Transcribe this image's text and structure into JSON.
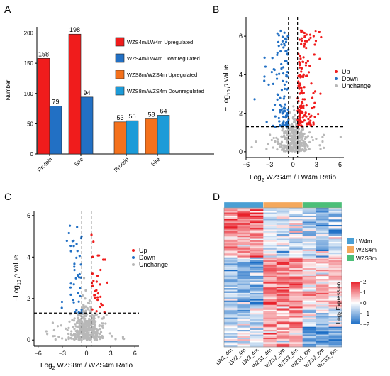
{
  "panels": {
    "a": "A",
    "b": "B",
    "c": "C",
    "d": "D"
  },
  "colors": {
    "red": "#f01c1c",
    "blue": "#2270c4",
    "orange": "#f4711c",
    "cyan": "#1c9bd8",
    "gray": "#b8b8b8",
    "lw4m": "#4a9fd4",
    "wzs4m": "#f4a85c",
    "wzs8m": "#4cbf78"
  },
  "chart_data": [
    {
      "type": "bar",
      "panel": "A",
      "ylabel": "Number",
      "ylim": [
        0,
        210
      ],
      "yticks": [
        0,
        50,
        100,
        150,
        200
      ],
      "categories": [
        "Protein",
        "Site",
        "Protein",
        "Site"
      ],
      "series": [
        {
          "name": "WZS4m/LW4m Upregulated",
          "color": "#f01c1c",
          "values": [
            158,
            198,
            null,
            null
          ]
        },
        {
          "name": "WZS4m/LW4m Downregulated",
          "color": "#2270c4",
          "values": [
            79,
            94,
            null,
            null
          ]
        },
        {
          "name": "WZS8m/WZS4m Upregulated",
          "color": "#f4711c",
          "values": [
            null,
            null,
            53,
            58
          ]
        },
        {
          "name": "WZS8m/WZS4m Downregulated",
          "color": "#1c9bd8",
          "values": [
            null,
            null,
            55,
            64
          ]
        }
      ],
      "legend_position": "right"
    },
    {
      "type": "scatter",
      "panel": "B",
      "xlabel_main": "WZS4m / LW4m Ratio",
      "xlabel_log": "Log",
      "xlabel_sub": "2",
      "ylabel_pre": "−Log",
      "ylabel_sub": "10",
      "ylabel_italic": "p",
      "ylabel_post": " value",
      "xlim": [
        -6,
        6.5
      ],
      "ylim": [
        -0.3,
        7
      ],
      "xticks": [
        -6,
        -3,
        0,
        3,
        6
      ],
      "yticks": [
        0,
        2,
        4,
        6
      ],
      "thresholds": {
        "x": [
          -0.58,
          0.58
        ],
        "y": 1.3
      },
      "legend": [
        "Up",
        "Down",
        "Unchange"
      ],
      "legend_position": "top-right"
    },
    {
      "type": "scatter",
      "panel": "C",
      "xlabel_main": "WZS8m / WZS4m Ratio",
      "xlabel_log": "Log",
      "xlabel_sub": "2",
      "ylabel_pre": "−Log",
      "ylabel_sub": "10",
      "ylabel_italic": "p",
      "ylabel_post": " value",
      "xlim": [
        -6.5,
        6.5
      ],
      "ylim": [
        -0.3,
        6.2
      ],
      "xticks": [
        -6,
        -3,
        0,
        3,
        6
      ],
      "yticks": [
        0,
        2,
        4,
        6
      ],
      "thresholds": {
        "x": [
          -0.58,
          0.58
        ],
        "y": 1.3
      },
      "legend": [
        "Up",
        "Down",
        "Unchange"
      ],
      "legend_position": "top-right"
    },
    {
      "type": "heatmap",
      "panel": "D",
      "columns": [
        "LW1_4m",
        "LW2_4m",
        "LW3_4m",
        "WZS1_4m",
        "WZS2_4m",
        "WZS3_4m",
        "WZS1_8m",
        "WZS2_8m",
        "WZS3_8m"
      ],
      "groups": [
        {
          "name": "LW4m",
          "color": "#4a9fd4"
        },
        {
          "name": "WZS4m",
          "color": "#f4a85c"
        },
        {
          "name": "WZS8m",
          "color": "#4cbf78"
        }
      ],
      "colorbar_title_pre": "Log",
      "colorbar_title_sub": "2",
      "colorbar_title_post": " Expression",
      "colorbar_range": [
        -2,
        2
      ],
      "colorbar_ticks": [
        2,
        1,
        0,
        -1,
        -2
      ],
      "colorbar_tick_labels": [
        "2",
        "1",
        "0",
        "−1",
        "−2"
      ]
    }
  ]
}
